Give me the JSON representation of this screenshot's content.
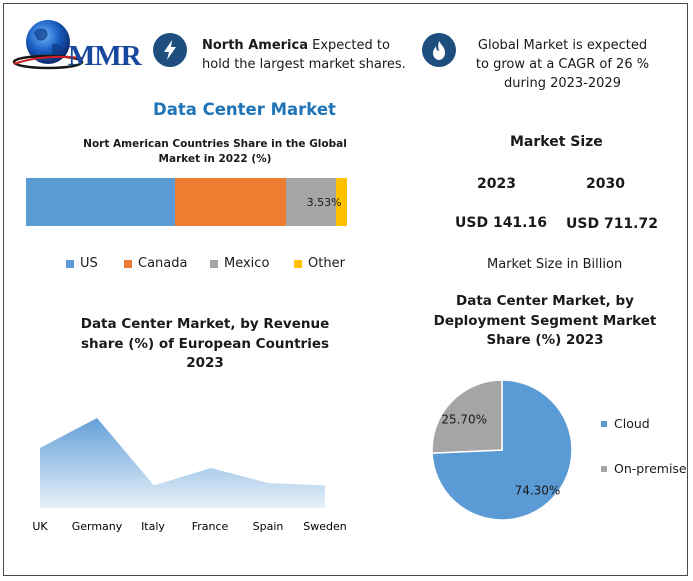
{
  "header": {
    "logo_text": "MMR",
    "info1": {
      "bold": "North America",
      "rest": " Expected to hold the largest market shares.",
      "icon": "lightning-icon"
    },
    "info2": {
      "text": "Global Market is expected to grow at a CAGR of 26 % during 2023-2029",
      "icon": "flame-icon"
    }
  },
  "main_title": "Data Center Market",
  "colors": {
    "us": "#5b9bd5",
    "canada": "#ed7d31",
    "mexico": "#a5a5a5",
    "other": "#ffc000",
    "area": "#5b9bd5",
    "pie_cloud": "#5b9bd5",
    "pie_onprem": "#a5a5a5",
    "icon_bg": "#1d4e7e",
    "title_blue": "#1f73b7"
  },
  "market_size": {
    "title": "Market Size",
    "year1": "2023",
    "year2": "2030",
    "value1": "USD 141.16",
    "value2": "USD 711.72",
    "note": "Market Size in Billion"
  },
  "chart_data": [
    {
      "type": "bar",
      "orientation": "horizontal-stacked-100",
      "title": "Nort American Countries Share in the Global Market in 2022 (%)",
      "series": [
        {
          "name": "US",
          "values": [
            46.5
          ]
        },
        {
          "name": "Canada",
          "values": [
            34.47
          ]
        },
        {
          "name": "Mexico",
          "values": [
            15.5
          ]
        },
        {
          "name": "Other",
          "values": [
            3.53
          ],
          "label": "3.53%"
        }
      ],
      "legend": "bottom"
    },
    {
      "type": "area",
      "title": "Data Center Market, by Revenue share (%) of European Countries 2023",
      "categories": [
        "UK",
        "Germany",
        "Italy",
        "France",
        "Spain",
        "Sweden"
      ],
      "values": [
        24,
        36,
        9,
        16,
        10,
        9
      ],
      "ylim": [
        0,
        40
      ],
      "grid": false
    },
    {
      "type": "pie",
      "title": "Data Center Market, by Deployment Segment Market Share (%) 2023",
      "labels": [
        "Cloud",
        "On-premise"
      ],
      "values": [
        74.3,
        25.7
      ],
      "value_labels": [
        "74.30%",
        "25.70%"
      ],
      "legend": "right"
    }
  ]
}
